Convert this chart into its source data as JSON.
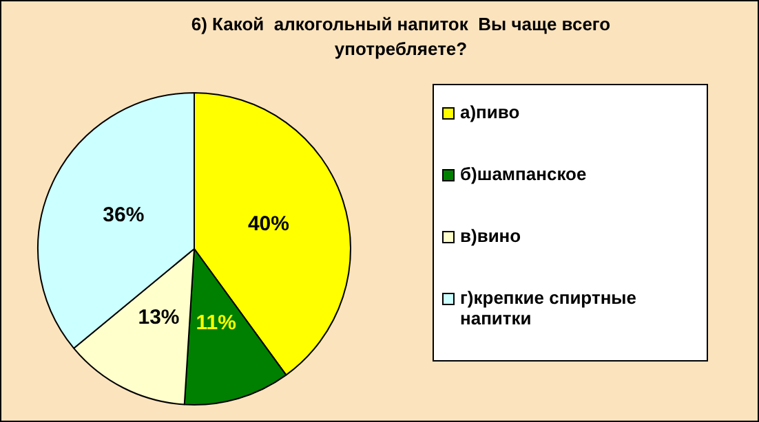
{
  "chart_data": {
    "type": "pie",
    "title": "6) Какой  алкогольный напиток  Вы чаще всего употребляете?",
    "categories": [
      "а)пиво",
      "б)шампанское",
      "в)вино",
      "г)крепкие спиртные напитки"
    ],
    "values": [
      40,
      11,
      13,
      36
    ],
    "colors": [
      "#ffff00",
      "#008000",
      "#ffffcc",
      "#ccffff"
    ],
    "value_labels": [
      "40%",
      "11%",
      "13%",
      "36%"
    ],
    "legend": "right"
  }
}
